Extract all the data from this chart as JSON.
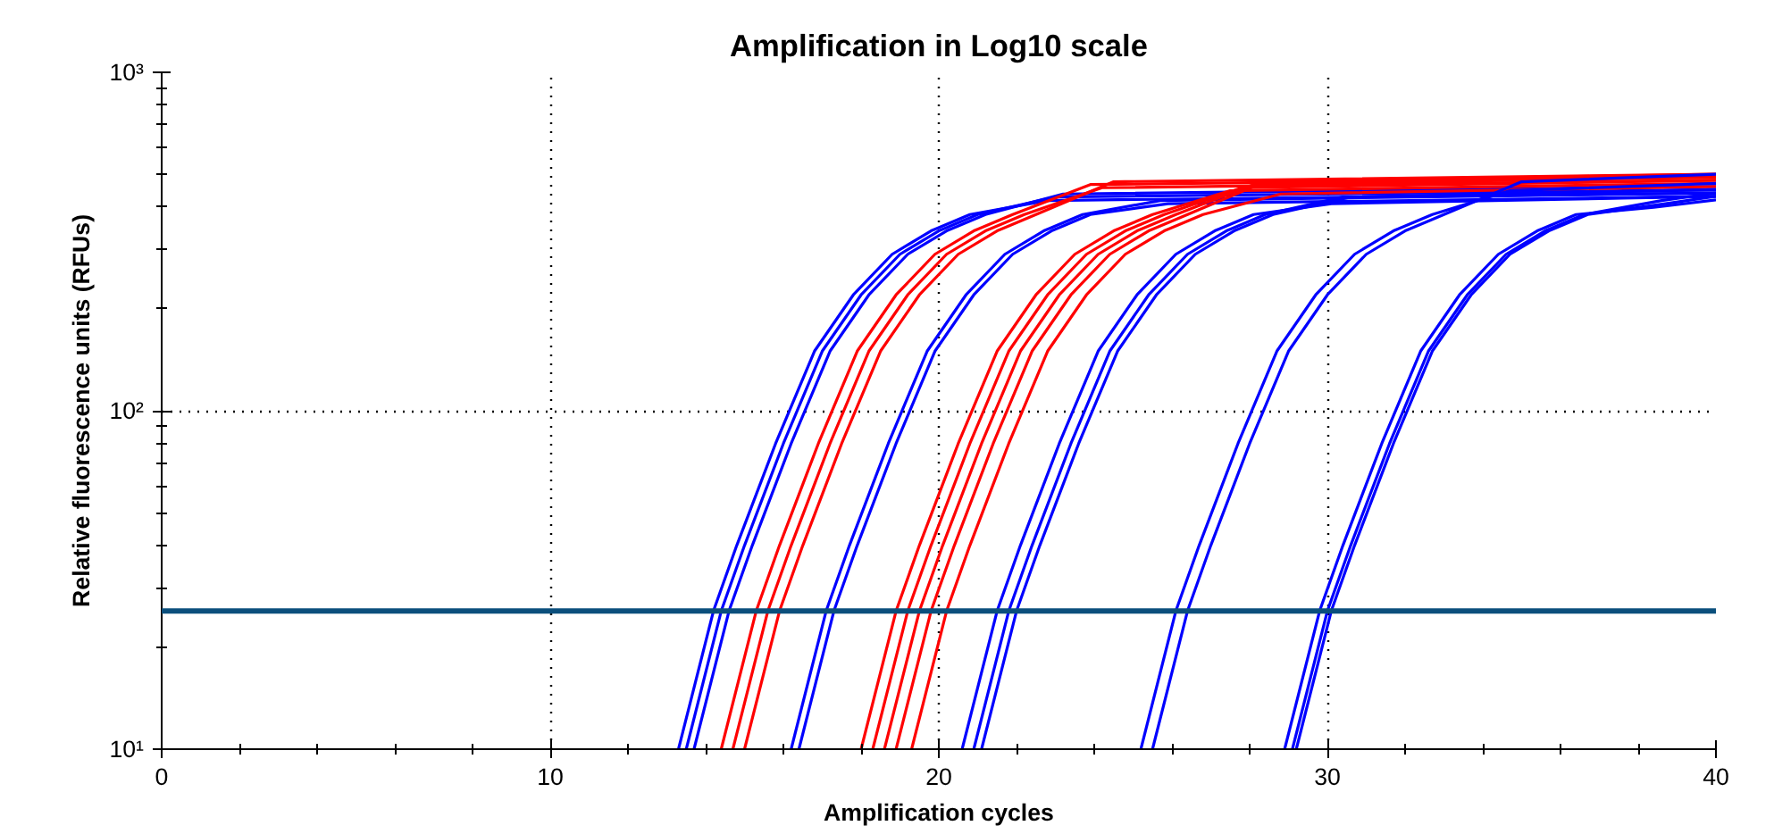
{
  "chart_data": {
    "type": "line",
    "title": "Amplification in Log10 scale",
    "xlabel": "Amplification cycles",
    "ylabel": "Relative fluorescence units (RFUs)",
    "log": "y",
    "grid": true,
    "marker": "none",
    "line_style": "solid",
    "xlim": [
      0,
      40
    ],
    "xticks": [
      0,
      10,
      20,
      30,
      40
    ],
    "ylim": [
      10,
      1000
    ],
    "yticks": [
      {
        "value": 10,
        "label": "10¹"
      },
      {
        "value": 100,
        "label": "10²"
      },
      {
        "value": 1000,
        "label": "10³"
      }
    ],
    "ref_lines": [
      {
        "axis": "y",
        "value": 25.6,
        "color": "#0b4f7c"
      }
    ],
    "series": [
      {
        "color": "#0000ff",
        "x": [
          13.3,
          14.2,
          14.8,
          15.8,
          16.8,
          17.8,
          18.8,
          19.8,
          20.8,
          22.8,
          40
        ],
        "values": [
          10,
          25.6,
          40,
          80,
          150,
          220,
          290,
          340,
          380,
          418,
          440
        ]
      },
      {
        "color": "#0000ff",
        "x": [
          13.5,
          14.4,
          15.0,
          16.0,
          17.0,
          18.0,
          19.0,
          20.0,
          21.0,
          23.0,
          40
        ],
        "values": [
          10,
          25.6,
          40,
          80,
          150,
          220,
          290,
          340,
          380,
          428,
          450
        ]
      },
      {
        "color": "#0000ff",
        "x": [
          13.7,
          14.6,
          15.2,
          16.2,
          17.2,
          18.2,
          19.2,
          20.2,
          21.2,
          23.2,
          40
        ],
        "values": [
          10,
          25.6,
          40,
          80,
          150,
          220,
          290,
          340,
          380,
          437,
          460
        ]
      },
      {
        "color": "#ff0000",
        "x": [
          14.4,
          15.3,
          15.9,
          16.9,
          17.9,
          18.9,
          19.9,
          20.9,
          21.9,
          23.9,
          40
        ],
        "values": [
          10,
          25.6,
          40,
          80,
          150,
          220,
          290,
          340,
          380,
          466,
          490
        ]
      },
      {
        "color": "#ff0000",
        "x": [
          14.7,
          15.6,
          16.2,
          17.2,
          18.2,
          19.2,
          20.2,
          21.2,
          22.2,
          24.2,
          40
        ],
        "values": [
          10,
          25.6,
          40,
          80,
          150,
          220,
          290,
          340,
          380,
          456,
          480
        ]
      },
      {
        "color": "#ff0000",
        "x": [
          15.0,
          15.9,
          16.5,
          17.5,
          18.5,
          19.5,
          20.5,
          21.5,
          22.5,
          24.5,
          40
        ],
        "values": [
          10,
          25.6,
          40,
          80,
          150,
          220,
          290,
          340,
          380,
          475,
          500
        ]
      },
      {
        "color": "#0000ff",
        "x": [
          16.2,
          17.1,
          17.7,
          18.7,
          19.7,
          20.7,
          21.7,
          22.7,
          23.7,
          25.7,
          40
        ],
        "values": [
          10,
          25.6,
          40,
          80,
          150,
          220,
          290,
          340,
          380,
          418,
          440
        ]
      },
      {
        "color": "#0000ff",
        "x": [
          16.4,
          17.3,
          17.9,
          18.9,
          19.9,
          20.9,
          21.9,
          22.9,
          23.9,
          25.9,
          40
        ],
        "values": [
          10,
          25.6,
          40,
          80,
          150,
          220,
          290,
          340,
          380,
          409,
          430
        ]
      },
      {
        "color": "#ff0000",
        "x": [
          18.0,
          18.9,
          19.5,
          20.5,
          21.5,
          22.5,
          23.5,
          24.5,
          25.5,
          27.5,
          40
        ],
        "values": [
          10,
          25.6,
          40,
          80,
          150,
          220,
          290,
          340,
          380,
          447,
          470
        ]
      },
      {
        "color": "#ff0000",
        "x": [
          18.3,
          19.2,
          19.8,
          20.8,
          21.8,
          22.8,
          23.8,
          24.8,
          25.8,
          27.8,
          40
        ],
        "values": [
          10,
          25.6,
          40,
          80,
          150,
          220,
          290,
          340,
          380,
          456,
          480
        ]
      },
      {
        "color": "#ff0000",
        "x": [
          18.6,
          19.5,
          20.1,
          21.1,
          22.1,
          23.1,
          24.1,
          25.1,
          26.1,
          28.1,
          40
        ],
        "values": [
          10,
          25.6,
          40,
          80,
          150,
          220,
          290,
          340,
          380,
          466,
          490
        ]
      },
      {
        "color": "#ff0000",
        "x": [
          18.9,
          19.8,
          20.4,
          21.4,
          22.4,
          23.4,
          24.4,
          25.4,
          26.4,
          28.4,
          40
        ],
        "values": [
          10,
          25.6,
          40,
          80,
          150,
          220,
          290,
          340,
          380,
          475,
          500
        ]
      },
      {
        "color": "#ff0000",
        "x": [
          19.3,
          20.2,
          20.8,
          21.8,
          22.8,
          23.8,
          24.8,
          25.8,
          26.8,
          28.8,
          40
        ],
        "values": [
          10,
          25.6,
          40,
          80,
          150,
          220,
          290,
          340,
          380,
          437,
          460
        ]
      },
      {
        "color": "#0000ff",
        "x": [
          20.6,
          21.5,
          22.1,
          23.1,
          24.1,
          25.1,
          26.1,
          27.1,
          28.1,
          30.1,
          40
        ],
        "values": [
          10,
          25.6,
          40,
          80,
          150,
          220,
          290,
          340,
          380,
          409,
          430
        ]
      },
      {
        "color": "#0000ff",
        "x": [
          20.9,
          21.8,
          22.4,
          23.4,
          24.4,
          25.4,
          26.4,
          27.4,
          28.4,
          30.4,
          40
        ],
        "values": [
          10,
          25.6,
          40,
          80,
          150,
          220,
          290,
          340,
          380,
          428,
          450
        ]
      },
      {
        "color": "#0000ff",
        "x": [
          21.1,
          22.0,
          22.6,
          23.6,
          24.6,
          25.6,
          26.6,
          27.6,
          28.6,
          30.6,
          40
        ],
        "values": [
          10,
          25.6,
          40,
          80,
          150,
          220,
          290,
          340,
          380,
          428,
          450
        ]
      },
      {
        "color": "#0000ff",
        "x": [
          25.2,
          26.1,
          26.7,
          27.7,
          28.7,
          29.7,
          30.7,
          31.7,
          32.7,
          34.7,
          40
        ],
        "values": [
          10,
          25.6,
          40,
          80,
          150,
          220,
          290,
          340,
          380,
          447,
          470
        ]
      },
      {
        "color": "#0000ff",
        "x": [
          25.5,
          26.4,
          27.0,
          28.0,
          29.0,
          30.0,
          31.0,
          32.0,
          33.0,
          35.0,
          40
        ],
        "values": [
          10,
          25.6,
          40,
          80,
          150,
          220,
          290,
          340,
          380,
          475,
          500
        ]
      },
      {
        "color": "#0000ff",
        "x": [
          28.9,
          29.8,
          30.4,
          31.4,
          32.4,
          33.4,
          34.4,
          35.4,
          36.4,
          38.4,
          40
        ],
        "values": [
          10,
          25.6,
          40,
          80,
          150,
          220,
          290,
          340,
          380,
          399,
          420
        ]
      },
      {
        "color": "#0000ff",
        "x": [
          29.1,
          30.0,
          30.6,
          31.6,
          32.6,
          33.6,
          34.6,
          35.6,
          36.6,
          38.6,
          40
        ],
        "values": [
          10,
          25.6,
          40,
          80,
          150,
          220,
          290,
          340,
          380,
          418,
          440
        ]
      },
      {
        "color": "#0000ff",
        "x": [
          29.2,
          30.1,
          30.7,
          31.7,
          32.7,
          33.7,
          34.7,
          35.7,
          36.7,
          38.7,
          40
        ],
        "values": [
          10,
          25.6,
          40,
          80,
          150,
          220,
          290,
          340,
          380,
          409,
          430
        ]
      }
    ]
  }
}
